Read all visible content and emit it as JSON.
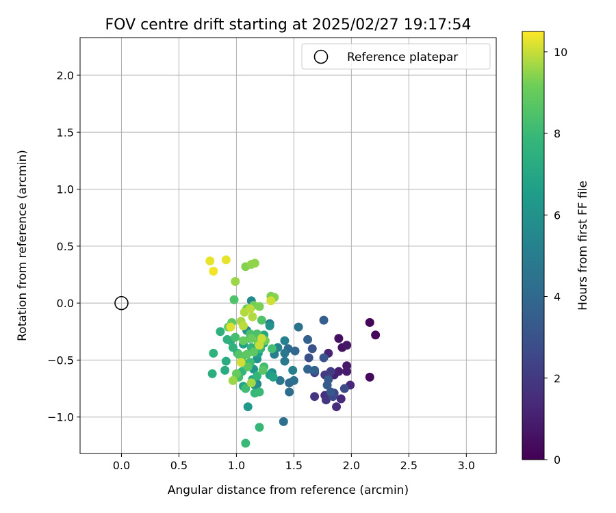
{
  "chart_data": {
    "type": "scatter",
    "title": "FOV centre drift starting at 2025/02/27 19:17:54",
    "xlabel": "Angular distance from reference (arcmin)",
    "ylabel": "Rotation from reference (arcmin)",
    "xlim": [
      -0.36,
      3.26
    ],
    "ylim": [
      -1.32,
      2.33
    ],
    "xticks": [
      "0.0",
      "0.5",
      "1.0",
      "1.5",
      "2.0",
      "2.5",
      "3.0"
    ],
    "yticks": [
      "−1.0",
      "−0.5",
      "0.0",
      "0.5",
      "1.0",
      "1.5",
      "2.0"
    ],
    "grid": true,
    "legend": {
      "location": "upper right",
      "entries": [
        "Reference platepar"
      ]
    },
    "reference_point": {
      "x": 0.0,
      "y": 0.0
    },
    "colorbar": {
      "label": "Hours from first FF file",
      "range": [
        0,
        10.5
      ],
      "ticks": [
        "0",
        "2",
        "4",
        "6",
        "8",
        "10"
      ],
      "colormap": "viridis"
    },
    "series": [
      {
        "points": [
          {
            "x": 2.16,
            "y": -0.17,
            "c": 0.1
          },
          {
            "x": 2.21,
            "y": -0.28,
            "c": 0.2
          },
          {
            "x": 2.16,
            "y": -0.65,
            "c": 0.3
          },
          {
            "x": 1.89,
            "y": -0.31,
            "c": 0.5
          },
          {
            "x": 1.92,
            "y": -0.39,
            "c": 0.6
          },
          {
            "x": 1.96,
            "y": -0.37,
            "c": 0.7
          },
          {
            "x": 1.96,
            "y": -0.55,
            "c": 0.8
          },
          {
            "x": 1.96,
            "y": -0.6,
            "c": 0.9
          },
          {
            "x": 1.89,
            "y": -0.6,
            "c": 1.0
          },
          {
            "x": 1.85,
            "y": -0.63,
            "c": 1.1
          },
          {
            "x": 1.8,
            "y": -0.44,
            "c": 1.2
          },
          {
            "x": 1.99,
            "y": -0.72,
            "c": 1.3
          },
          {
            "x": 1.91,
            "y": -0.84,
            "c": 1.4
          },
          {
            "x": 1.87,
            "y": -0.91,
            "c": 1.5
          },
          {
            "x": 1.77,
            "y": -0.81,
            "c": 1.6
          },
          {
            "x": 1.68,
            "y": -0.82,
            "c": 1.8
          },
          {
            "x": 1.78,
            "y": -0.85,
            "c": 1.9
          },
          {
            "x": 1.77,
            "y": -0.63,
            "c": 2.0
          },
          {
            "x": 1.82,
            "y": -0.6,
            "c": 2.1
          },
          {
            "x": 1.68,
            "y": -0.61,
            "c": 2.3
          },
          {
            "x": 1.85,
            "y": -0.79,
            "c": 2.4
          },
          {
            "x": 1.84,
            "y": -0.82,
            "c": 2.6
          },
          {
            "x": 1.94,
            "y": -0.75,
            "c": 2.7
          },
          {
            "x": 1.63,
            "y": -0.48,
            "c": 2.8
          },
          {
            "x": 1.66,
            "y": -0.4,
            "c": 3.0
          },
          {
            "x": 1.76,
            "y": -0.48,
            "c": 3.1
          },
          {
            "x": 1.82,
            "y": -0.78,
            "c": 3.2
          },
          {
            "x": 1.8,
            "y": -0.67,
            "c": 3.3
          },
          {
            "x": 1.79,
            "y": -0.72,
            "c": 3.4
          },
          {
            "x": 1.76,
            "y": -0.15,
            "c": 3.5
          },
          {
            "x": 1.62,
            "y": -0.32,
            "c": 3.6
          },
          {
            "x": 1.68,
            "y": -0.59,
            "c": 3.7
          },
          {
            "x": 1.62,
            "y": -0.58,
            "c": 3.8
          },
          {
            "x": 1.51,
            "y": -0.42,
            "c": 3.9
          },
          {
            "x": 1.45,
            "y": -0.4,
            "c": 4.0
          },
          {
            "x": 1.46,
            "y": -0.7,
            "c": 4.1
          },
          {
            "x": 1.46,
            "y": -0.78,
            "c": 4.2
          },
          {
            "x": 1.5,
            "y": -0.68,
            "c": 4.3
          },
          {
            "x": 1.41,
            "y": -1.04,
            "c": 4.4
          },
          {
            "x": 1.54,
            "y": -0.21,
            "c": 4.5
          },
          {
            "x": 1.38,
            "y": -0.68,
            "c": 4.6
          },
          {
            "x": 1.42,
            "y": -0.44,
            "c": 4.7
          },
          {
            "x": 1.42,
            "y": -0.51,
            "c": 4.8
          },
          {
            "x": 1.29,
            "y": -0.18,
            "c": 4.9
          },
          {
            "x": 1.33,
            "y": -0.45,
            "c": 5.0
          },
          {
            "x": 1.49,
            "y": -0.59,
            "c": 5.1
          },
          {
            "x": 1.42,
            "y": -0.33,
            "c": 5.2
          },
          {
            "x": 1.36,
            "y": -0.39,
            "c": 5.3
          },
          {
            "x": 1.18,
            "y": -0.71,
            "c": 5.4
          },
          {
            "x": 1.21,
            "y": -0.31,
            "c": 5.5
          },
          {
            "x": 1.13,
            "y": 0.02,
            "c": 5.6
          },
          {
            "x": 1.09,
            "y": -0.24,
            "c": 5.7
          },
          {
            "x": 1.31,
            "y": -0.61,
            "c": 5.8
          },
          {
            "x": 1.16,
            "y": -0.72,
            "c": 5.9
          },
          {
            "x": 1.29,
            "y": -0.2,
            "c": 6.0
          },
          {
            "x": 1.15,
            "y": -0.58,
            "c": 6.1
          },
          {
            "x": 1.18,
            "y": -0.49,
            "c": 6.2
          },
          {
            "x": 1.1,
            "y": -0.91,
            "c": 6.3
          },
          {
            "x": 1.29,
            "y": -0.63,
            "c": 6.4
          },
          {
            "x": 1.24,
            "y": -0.35,
            "c": 6.5
          },
          {
            "x": 1.06,
            "y": -0.36,
            "c": 6.6
          },
          {
            "x": 1.19,
            "y": -0.44,
            "c": 6.7
          },
          {
            "x": 1.32,
            "y": -0.65,
            "c": 6.8
          },
          {
            "x": 1.06,
            "y": -0.73,
            "c": 6.9
          },
          {
            "x": 1.14,
            "y": -0.67,
            "c": 7.0
          },
          {
            "x": 1.24,
            "y": -0.28,
            "c": 7.1
          },
          {
            "x": 1.05,
            "y": -0.52,
            "c": 7.1
          },
          {
            "x": 1.01,
            "y": -0.44,
            "c": 7.2
          },
          {
            "x": 1.12,
            "y": -0.31,
            "c": 7.2
          },
          {
            "x": 0.91,
            "y": -0.51,
            "c": 7.3
          },
          {
            "x": 0.9,
            "y": -0.59,
            "c": 7.3
          },
          {
            "x": 0.79,
            "y": -0.62,
            "c": 7.4
          },
          {
            "x": 0.95,
            "y": -0.33,
            "c": 7.4
          },
          {
            "x": 0.92,
            "y": -0.32,
            "c": 7.5
          },
          {
            "x": 0.86,
            "y": -0.25,
            "c": 7.5
          },
          {
            "x": 0.8,
            "y": -0.44,
            "c": 7.6
          },
          {
            "x": 0.97,
            "y": -0.39,
            "c": 7.6
          },
          {
            "x": 1.05,
            "y": -0.6,
            "c": 7.7
          },
          {
            "x": 1.13,
            "y": -0.39,
            "c": 7.7
          },
          {
            "x": 1.21,
            "y": -0.4,
            "c": 7.8
          },
          {
            "x": 1.18,
            "y": -0.64,
            "c": 7.8
          },
          {
            "x": 1.16,
            "y": -0.79,
            "c": 7.9
          },
          {
            "x": 1.2,
            "y": -1.09,
            "c": 7.9
          },
          {
            "x": 1.08,
            "y": -1.23,
            "c": 8.0
          },
          {
            "x": 1.2,
            "y": -0.78,
            "c": 8.0
          },
          {
            "x": 1.08,
            "y": -0.75,
            "c": 8.1
          },
          {
            "x": 1.12,
            "y": -0.52,
            "c": 8.1
          },
          {
            "x": 1.24,
            "y": -0.56,
            "c": 8.2
          },
          {
            "x": 1.31,
            "y": -0.4,
            "c": 8.2
          },
          {
            "x": 1.02,
            "y": -0.65,
            "c": 8.3
          },
          {
            "x": 0.99,
            "y": -0.3,
            "c": 8.3
          },
          {
            "x": 1.12,
            "y": -0.27,
            "c": 8.4
          },
          {
            "x": 1.18,
            "y": -0.27,
            "c": 8.4
          },
          {
            "x": 1.22,
            "y": -0.15,
            "c": 8.5
          },
          {
            "x": 0.98,
            "y": 0.03,
            "c": 8.5
          },
          {
            "x": 1.02,
            "y": -0.45,
            "c": 8.6
          },
          {
            "x": 1.05,
            "y": -0.48,
            "c": 8.6
          },
          {
            "x": 1.1,
            "y": -0.56,
            "c": 8.7
          },
          {
            "x": 1.23,
            "y": -0.59,
            "c": 8.7
          },
          {
            "x": 1.15,
            "y": -0.43,
            "c": 8.8
          },
          {
            "x": 1.09,
            "y": -0.45,
            "c": 8.8
          },
          {
            "x": 0.93,
            "y": -0.21,
            "c": 8.9
          },
          {
            "x": 0.96,
            "y": -0.17,
            "c": 8.9
          },
          {
            "x": 1.0,
            "y": -0.62,
            "c": 9.0
          },
          {
            "x": 1.06,
            "y": -0.33,
            "c": 9.0
          },
          {
            "x": 1.13,
            "y": -0.31,
            "c": 9.1
          },
          {
            "x": 1.19,
            "y": -0.35,
            "c": 9.1
          },
          {
            "x": 1.25,
            "y": -0.33,
            "c": 9.2
          },
          {
            "x": 1.09,
            "y": -0.05,
            "c": 9.2
          },
          {
            "x": 1.15,
            "y": -0.02,
            "c": 9.2
          },
          {
            "x": 1.2,
            "y": -0.03,
            "c": 9.3
          },
          {
            "x": 1.3,
            "y": 0.06,
            "c": 9.3
          },
          {
            "x": 1.33,
            "y": 0.05,
            "c": 9.4
          },
          {
            "x": 1.08,
            "y": 0.32,
            "c": 9.4
          },
          {
            "x": 1.13,
            "y": 0.34,
            "c": 9.5
          },
          {
            "x": 1.16,
            "y": 0.35,
            "c": 9.5
          },
          {
            "x": 0.99,
            "y": 0.19,
            "c": 9.6
          },
          {
            "x": 0.97,
            "y": -0.68,
            "c": 9.6
          },
          {
            "x": 1.13,
            "y": -0.7,
            "c": 9.7
          },
          {
            "x": 1.04,
            "y": -0.16,
            "c": 9.7
          },
          {
            "x": 1.14,
            "y": -0.12,
            "c": 9.8
          },
          {
            "x": 1.07,
            "y": -0.08,
            "c": 9.8
          },
          {
            "x": 1.06,
            "y": -0.2,
            "c": 9.9
          },
          {
            "x": 1.12,
            "y": -0.05,
            "c": 9.9
          },
          {
            "x": 1.2,
            "y": -0.37,
            "c": 10.0
          },
          {
            "x": 1.22,
            "y": -0.31,
            "c": 10.0
          },
          {
            "x": 1.04,
            "y": -0.52,
            "c": 10.1
          },
          {
            "x": 1.3,
            "y": 0.02,
            "c": 10.1
          },
          {
            "x": 0.95,
            "y": -0.21,
            "c": 10.2
          },
          {
            "x": 0.91,
            "y": 0.38,
            "c": 10.3
          },
          {
            "x": 0.77,
            "y": 0.37,
            "c": 10.3
          },
          {
            "x": 0.8,
            "y": 0.28,
            "c": 10.4
          }
        ]
      }
    ]
  }
}
